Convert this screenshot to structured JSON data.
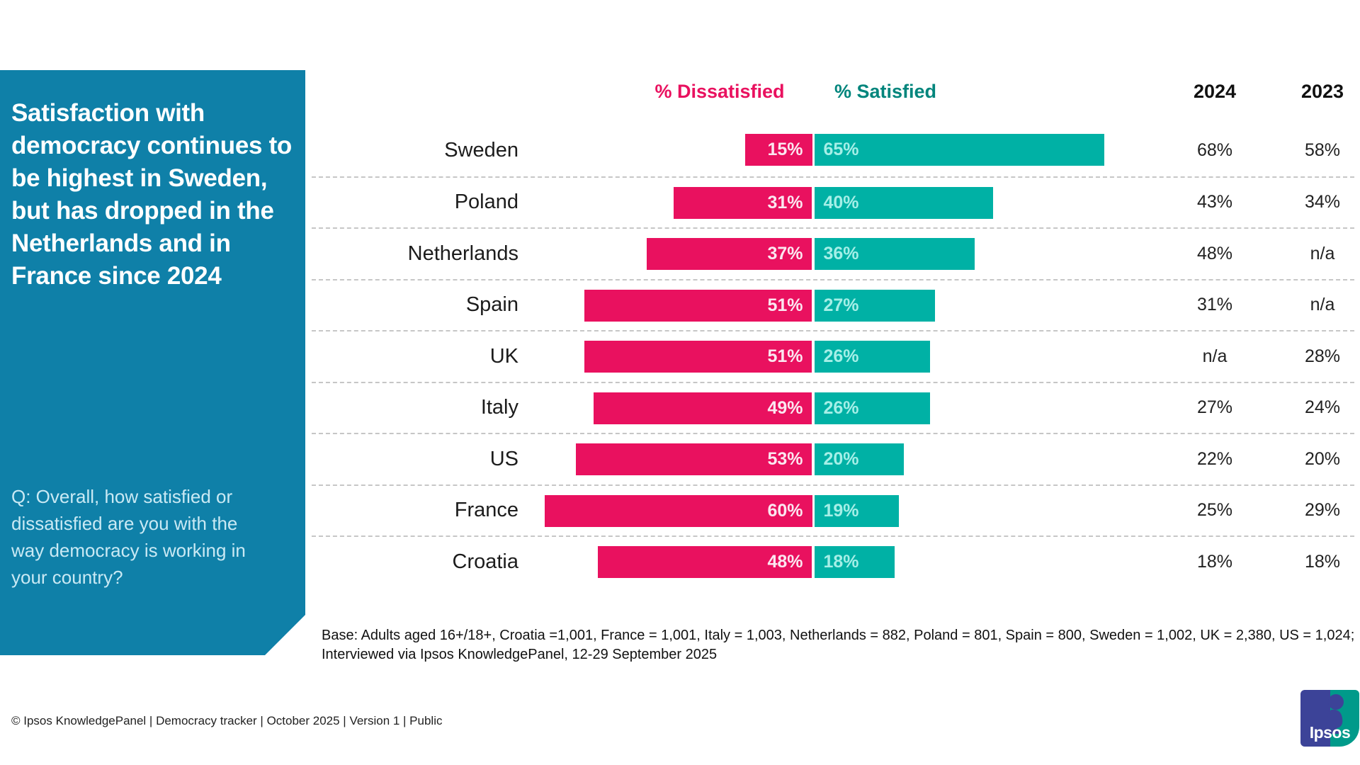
{
  "sidebar": {
    "title": "Satisfaction with democracy continues to be highest in Sweden, but has dropped in the Netherlands and in France since 2024",
    "question": "Q: Overall, how satisfied or dissatisfied are you with the way democracy is working in your country?"
  },
  "header": {
    "dissatisfied_label": "% Dissatisfied",
    "satisfied_label": "% Satisfied",
    "col_2024": "2024",
    "col_2023": "2023"
  },
  "chart_data": {
    "type": "bar",
    "variant": "horizontal-diverging-stacked",
    "title": "Satisfaction with democracy continues to be highest in Sweden, but has dropped in the Netherlands and in France since 2024",
    "categories": [
      "Sweden",
      "Poland",
      "Netherlands",
      "Spain",
      "UK",
      "Italy",
      "US",
      "France",
      "Croatia"
    ],
    "series": [
      {
        "name": "% Dissatisfied",
        "color": "#e9115f",
        "values": [
          15,
          31,
          37,
          51,
          51,
          49,
          53,
          60,
          48
        ]
      },
      {
        "name": "% Satisfied",
        "color": "#00b1a5",
        "values": [
          65,
          40,
          36,
          27,
          26,
          26,
          20,
          19,
          18
        ]
      }
    ],
    "value_suffix": "%",
    "comparison_columns": [
      {
        "label": "2024",
        "values": [
          "68%",
          "43%",
          "48%",
          "31%",
          "n/a",
          "27%",
          "22%",
          "25%",
          "18%"
        ]
      },
      {
        "label": "2023",
        "values": [
          "58%",
          "34%",
          "n/a",
          "n/a",
          "28%",
          "24%",
          "20%",
          "29%",
          "18%"
        ]
      }
    ],
    "legend_position": "top",
    "grid": "dashed-row-separators",
    "axis_hidden": true
  },
  "footnote": {
    "line1": "Base: Adults aged 16+/18+, Croatia =1,001, France = 1,001, Italy = 1,003, Netherlands = 882, Poland = 801, Spain = 800, Sweden = 1,002, UK = 2,380, US = 1,024;",
    "line2": "Interviewed via Ipsos KnowledgePanel, 12-29 September 2025"
  },
  "footer": {
    "text": "© Ipsos KnowledgePanel | Democracy tracker | October 2025 | Version 1 | Public"
  },
  "logo": {
    "text": "Ipsos"
  },
  "colors": {
    "dissatisfied": "#e9115f",
    "satisfied": "#00b1a5",
    "dissatisfied_header": "#e9115f",
    "satisfied_header": "#00857c",
    "sidebar": "#0f80a8"
  }
}
